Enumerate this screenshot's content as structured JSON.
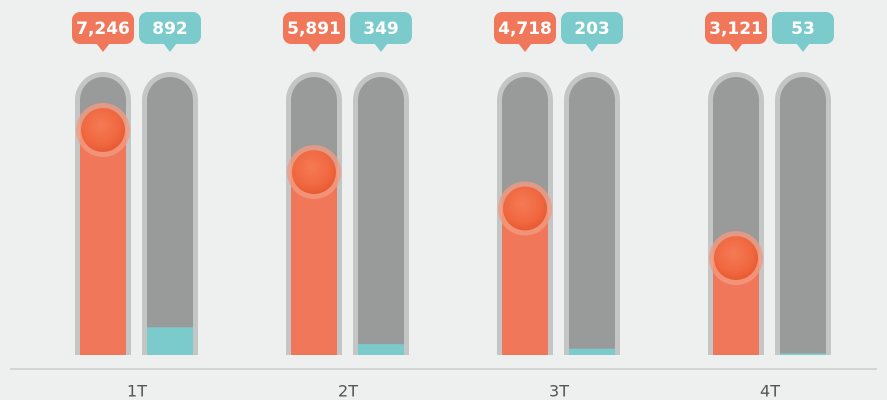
{
  "chart_data": {
    "type": "bar",
    "categories": [
      "1T",
      "2T",
      "3T",
      "4T"
    ],
    "series": [
      {
        "color": "#f0775a",
        "values": [
          7246,
          5891,
          4718,
          3121
        ],
        "value_labels": [
          "7,246",
          "5,891",
          "4,718",
          "3,121"
        ]
      },
      {
        "color": "#7ccbcc",
        "values": [
          892,
          349,
          203,
          53
        ]
      }
    ]
  }
}
